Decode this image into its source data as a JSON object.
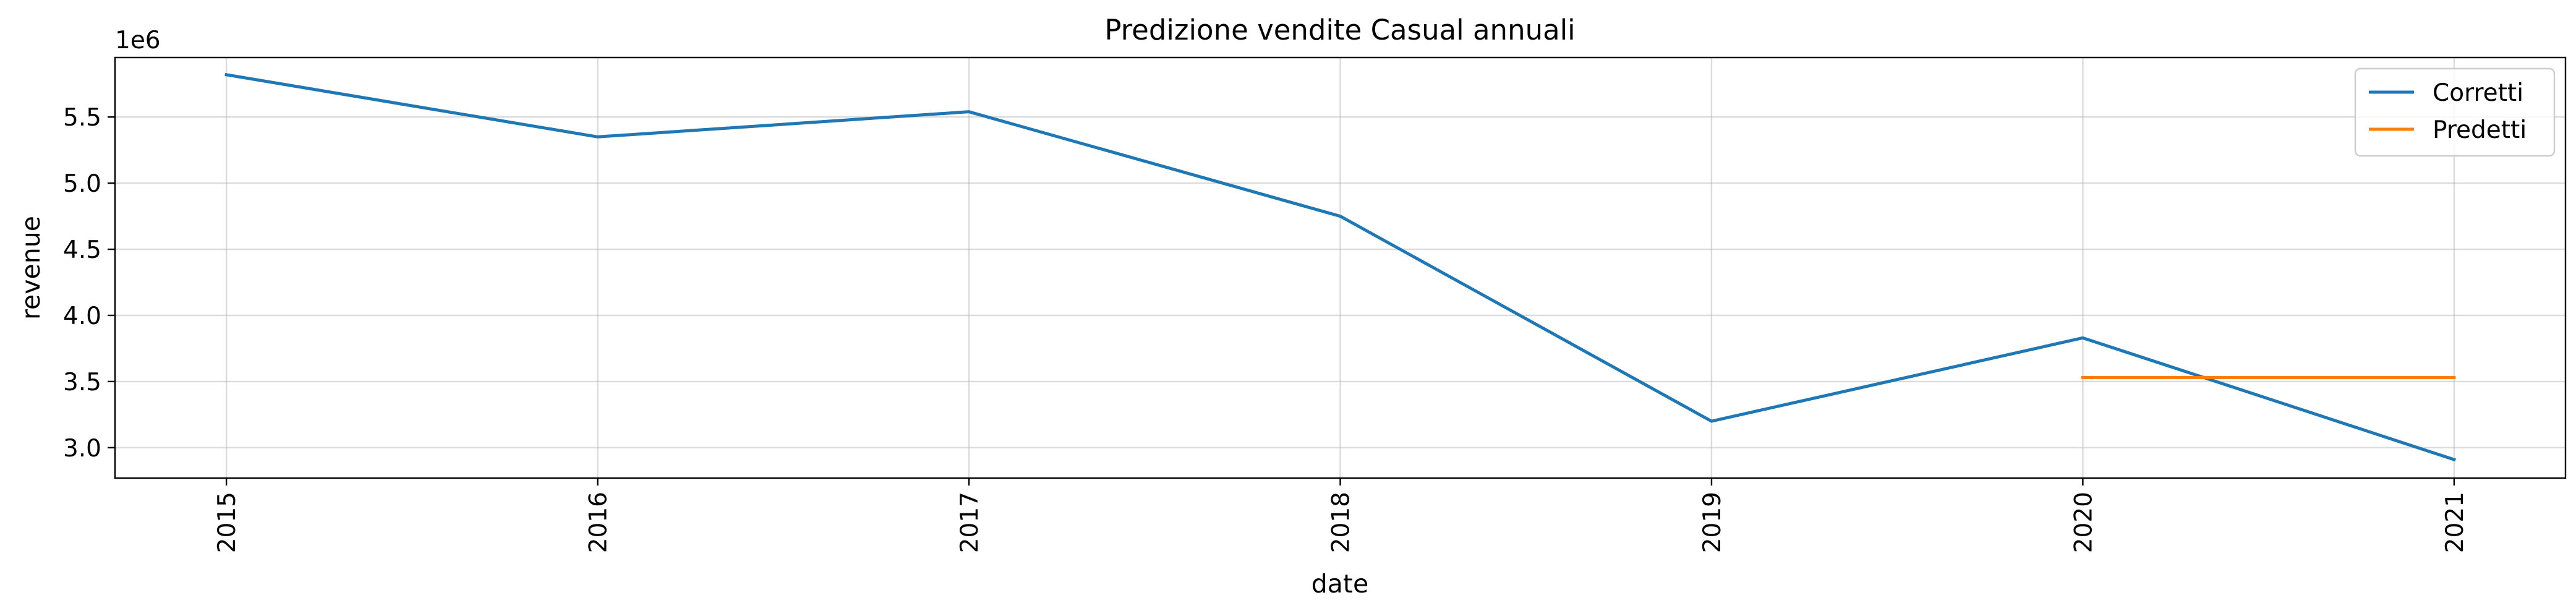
{
  "chart_data": {
    "type": "line",
    "title": "Predizione vendite Casual annuali",
    "xlabel": "date",
    "ylabel": "revenue",
    "y_offset_label": "1e6",
    "x_ticks": [
      "2015",
      "2016",
      "2017",
      "2018",
      "2019",
      "2020",
      "2021"
    ],
    "y_ticks": [
      "3.0",
      "3.5",
      "4.0",
      "4.5",
      "5.0",
      "5.5"
    ],
    "y_tick_values": [
      3.0,
      3.5,
      4.0,
      4.5,
      5.0,
      5.5
    ],
    "xlim": [
      2014.7,
      2021.3
    ],
    "ylim": [
      2.77,
      5.95
    ],
    "grid": true,
    "legend_position": "top-right",
    "series": [
      {
        "name": "Corretti",
        "color": "#1f77b4",
        "x": [
          2015,
          2016,
          2017,
          2018,
          2019,
          2020,
          2021
        ],
        "y": [
          5.82,
          5.35,
          5.54,
          4.75,
          3.2,
          3.83,
          2.91
        ]
      },
      {
        "name": "Predetti",
        "color": "#ff7f0e",
        "x": [
          2020,
          2021
        ],
        "y": [
          3.53,
          3.53
        ]
      }
    ]
  }
}
